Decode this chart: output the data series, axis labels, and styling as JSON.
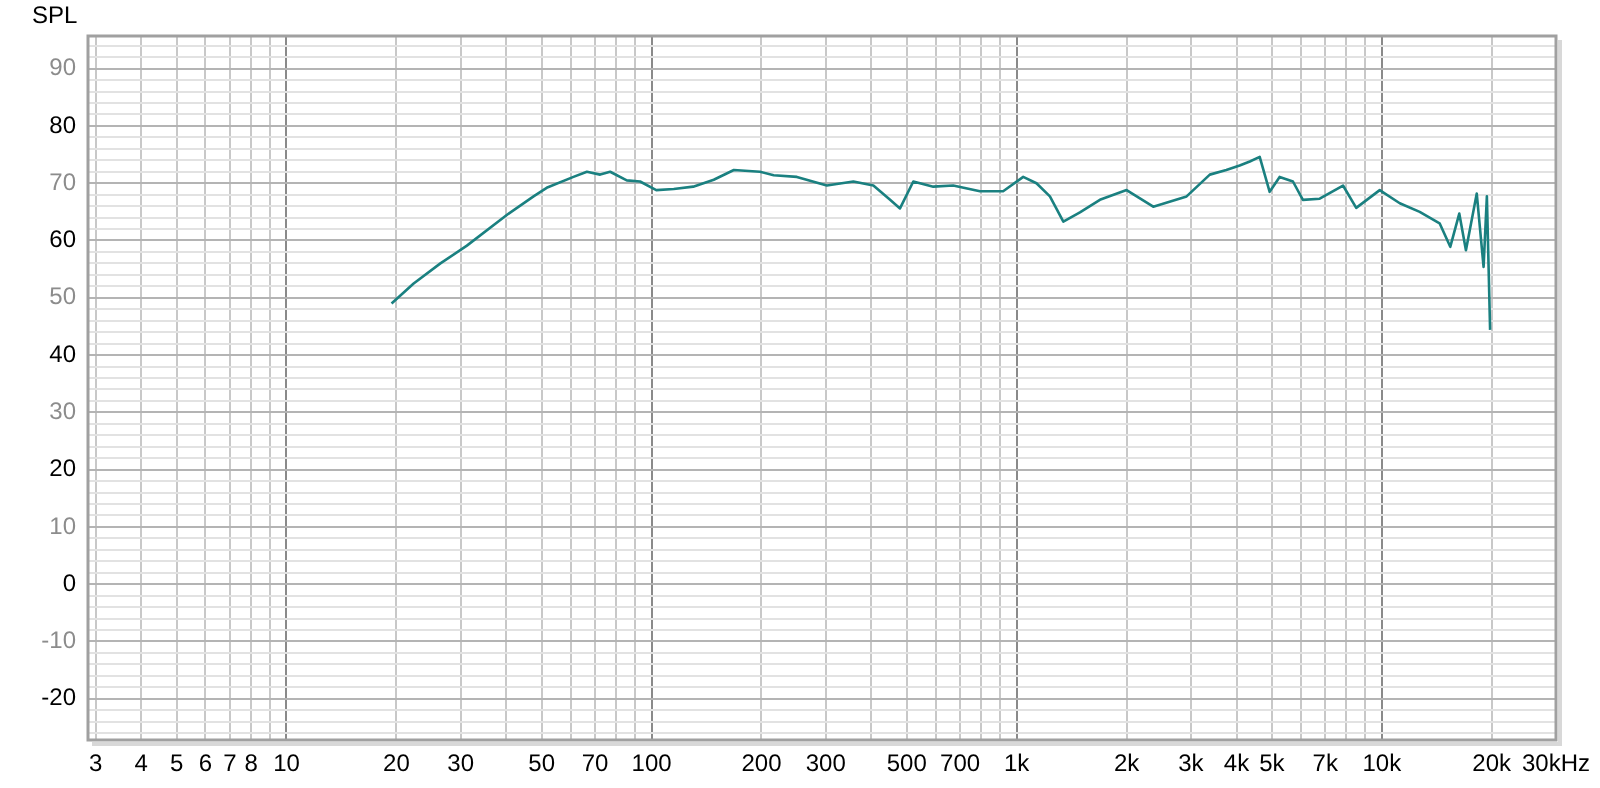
{
  "chart_data": {
    "type": "line",
    "ylabel": "SPL",
    "log": "x",
    "grid": true,
    "legend": false,
    "marker": "none",
    "line_style": "solid",
    "xlim": [
      2.86,
      30000
    ],
    "ylim": [
      -27.2,
      95.7
    ],
    "xticks": [
      3,
      4,
      5,
      6,
      7,
      8,
      {
        "value": 9,
        "label": null
      },
      10,
      20,
      30,
      {
        "value": 40,
        "label": null
      },
      50,
      {
        "value": 60,
        "label": null
      },
      70,
      {
        "value": 80,
        "label": null
      },
      {
        "value": 90,
        "label": null
      },
      100,
      200,
      300,
      {
        "value": 400,
        "label": null
      },
      500,
      {
        "value": 600,
        "label": null
      },
      700,
      {
        "value": 800,
        "label": null
      },
      {
        "value": 900,
        "label": null
      },
      {
        "value": 1000,
        "label": "1k"
      },
      {
        "value": 2000,
        "label": "2k"
      },
      {
        "value": 3000,
        "label": "3k"
      },
      {
        "value": 4000,
        "label": "4k"
      },
      {
        "value": 5000,
        "label": "5k"
      },
      {
        "value": 6000,
        "label": null
      },
      {
        "value": 7000,
        "label": "7k"
      },
      {
        "value": 8000,
        "label": null
      },
      {
        "value": 9000,
        "label": null
      },
      {
        "value": 10000,
        "label": "10k"
      },
      {
        "value": 20000,
        "label": "20k"
      },
      {
        "value": 30000,
        "label": "30k"
      }
    ],
    "xlabel": "Hz",
    "yticks": [
      {
        "value": -26,
        "label": null
      },
      {
        "value": -24,
        "label": null
      },
      {
        "value": -22,
        "label": null
      },
      -20,
      {
        "value": -18,
        "label": null
      },
      {
        "value": -16,
        "label": null
      },
      {
        "value": -14,
        "label": null
      },
      {
        "value": -12,
        "label": null
      },
      -10,
      {
        "value": -8,
        "label": null
      },
      {
        "value": -6,
        "label": null
      },
      {
        "value": -4,
        "label": null
      },
      {
        "value": -2,
        "label": null
      },
      0,
      {
        "value": 2,
        "label": null
      },
      {
        "value": 4,
        "label": null
      },
      {
        "value": 6,
        "label": null
      },
      {
        "value": 8,
        "label": null
      },
      10,
      {
        "value": 12,
        "label": null
      },
      {
        "value": 14,
        "label": null
      },
      {
        "value": 16,
        "label": null
      },
      {
        "value": 18,
        "label": null
      },
      20,
      {
        "value": 22,
        "label": null
      },
      {
        "value": 24,
        "label": null
      },
      {
        "value": 26,
        "label": null
      },
      {
        "value": 28,
        "label": null
      },
      30,
      {
        "value": 32,
        "label": null
      },
      {
        "value": 34,
        "label": null
      },
      {
        "value": 36,
        "label": null
      },
      {
        "value": 38,
        "label": null
      },
      40,
      {
        "value": 42,
        "label": null
      },
      {
        "value": 44,
        "label": null
      },
      {
        "value": 46,
        "label": null
      },
      {
        "value": 48,
        "label": null
      },
      50,
      {
        "value": 52,
        "label": null
      },
      {
        "value": 54,
        "label": null
      },
      {
        "value": 56,
        "label": null
      },
      {
        "value": 58,
        "label": null
      },
      60,
      {
        "value": 62,
        "label": null
      },
      {
        "value": 64,
        "label": null
      },
      {
        "value": 66,
        "label": null
      },
      {
        "value": 68,
        "label": null
      },
      70,
      {
        "value": 72,
        "label": null
      },
      {
        "value": 74,
        "label": null
      },
      {
        "value": 76,
        "label": null
      },
      {
        "value": 78,
        "label": null
      },
      80,
      {
        "value": 82,
        "label": null
      },
      {
        "value": 84,
        "label": null
      },
      {
        "value": 86,
        "label": null
      },
      {
        "value": 88,
        "label": null
      },
      90,
      {
        "value": 92,
        "label": null
      },
      {
        "value": 94,
        "label": null
      }
    ],
    "series": [
      {
        "color": "#1a8080",
        "x": [
          19.4,
          22.3,
          26.4,
          31.2,
          40.2,
          47.5,
          51.6,
          61.1,
          66.5,
          72.3,
          77,
          85.5,
          93,
          103,
          115,
          130,
          148,
          168,
          198,
          216,
          250,
          302,
          357,
          405,
          450,
          479,
          521,
          591,
          670,
          793,
          918,
          1042,
          1133,
          1233,
          1342,
          1490,
          1690,
          2000,
          2366,
          2920,
          3380,
          3750,
          4080,
          4350,
          4630,
          4930,
          5250,
          5710,
          6080,
          6760,
          7830,
          8510,
          9870,
          11200,
          12700,
          14400,
          15400,
          16300,
          17000,
          18200,
          19000,
          19400,
          19800
        ],
        "values": [
          49.0,
          52.5,
          56.0,
          59.1,
          64.5,
          67.7,
          69.2,
          71.1,
          72.0,
          71.5,
          72.0,
          70.5,
          70.3,
          68.8,
          69.0,
          69.4,
          70.6,
          72.3,
          72.0,
          71.4,
          71.1,
          69.6,
          70.3,
          69.6,
          67.1,
          65.6,
          70.3,
          69.4,
          69.6,
          68.6,
          68.6,
          71.1,
          70.0,
          67.7,
          63.3,
          64.9,
          67.1,
          68.8,
          65.9,
          67.7,
          71.5,
          72.3,
          73.1,
          73.8,
          74.6,
          68.5,
          71.1,
          70.3,
          67.1,
          67.3,
          69.6,
          65.7,
          68.8,
          66.5,
          65.0,
          63.0,
          58.9,
          64.7,
          58.3,
          68.2,
          55.4,
          67.7,
          44.4
        ]
      }
    ]
  }
}
